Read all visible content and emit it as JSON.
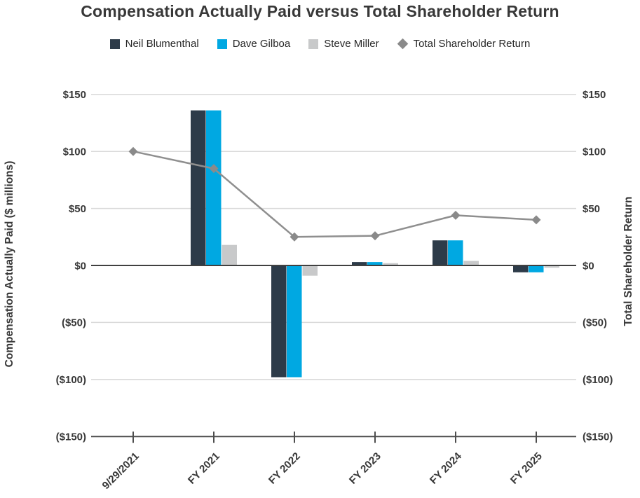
{
  "chart_data": {
    "type": "bar",
    "subtype": "grouped-bar-with-line-dual-axis",
    "title": "Compensation Actually Paid versus Total Shareholder Return",
    "categories": [
      "9/29/2021",
      "FY 2021",
      "FY 2022",
      "FY 2023",
      "FY 2024",
      "FY 2025"
    ],
    "bar_series": [
      {
        "name": "Neil Blumenthal",
        "color": "#2d3b49",
        "axis": "left",
        "values": [
          null,
          136,
          -98,
          3,
          22,
          -6
        ]
      },
      {
        "name": "Dave Gilboa",
        "color": "#00a8e2",
        "axis": "left",
        "values": [
          null,
          136,
          -98,
          3,
          22,
          -6
        ]
      },
      {
        "name": "Steve Miller",
        "color": "#c8c9ca",
        "axis": "left",
        "values": [
          null,
          18,
          -9,
          2,
          4,
          -2
        ]
      }
    ],
    "line_series": {
      "name": "Total Shareholder Return",
      "color": "#8f8f8f",
      "marker": "diamond",
      "marker_color": "#8a8a8a",
      "axis": "right",
      "values": [
        100,
        85,
        25,
        26,
        44,
        40
      ]
    },
    "left_axis": {
      "title": "Compensation Actually Paid ($ millions)",
      "min": -150,
      "max": 150,
      "step": 50,
      "tick_labels": [
        "$150",
        "$100",
        "$50",
        "$0",
        "($50)",
        "($100)",
        "($150)"
      ]
    },
    "right_axis": {
      "title": "Total Shareholder Return",
      "min": -150,
      "max": 150,
      "step": 50,
      "tick_labels": [
        "$150",
        "$100",
        "$50",
        "$0",
        "($50)",
        "($100)",
        "($150)"
      ]
    },
    "grid": "horizontal gridlines on",
    "legend_position": "top",
    "colors": {
      "gridline": "#d9d9d9",
      "zero_line": "#404040",
      "bottom_axis": "#4d4d4d",
      "text": "#383838"
    }
  }
}
